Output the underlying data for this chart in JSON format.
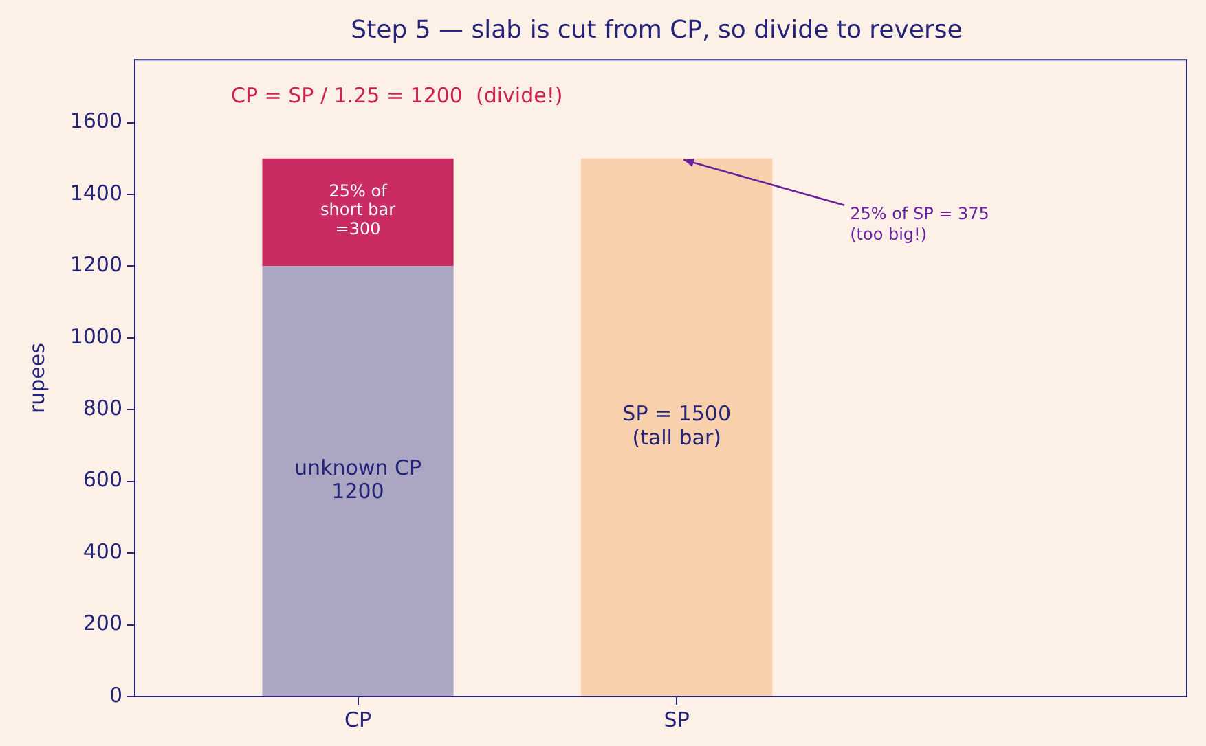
{
  "chart_data": {
    "type": "bar",
    "stacked": true,
    "title": "Step 5 — slab is cut from CP, so divide to reverse",
    "ylabel": "rupees",
    "categories": [
      "CP",
      "SP"
    ],
    "series": [
      {
        "colors": [
          "#aba7c3",
          "#f9d0ac"
        ],
        "values": [
          1200,
          1500
        ],
        "value_labels": [
          "unknown CP\n1200",
          "SP = 1500\n(tall bar)"
        ]
      },
      {
        "color": "#c92b62",
        "values": [
          300,
          null
        ],
        "value_labels": [
          "25% of\nshort bar\n=300",
          null
        ]
      }
    ],
    "ylim": [
      0,
      1775
    ],
    "yticks": [
      0,
      200,
      400,
      600,
      800,
      1000,
      1200,
      1400,
      1600
    ],
    "grid": false,
    "legend": false,
    "annotations": [
      "CP = SP / 1.25 = 1200  (divide!)",
      {
        "text": "25% of SP = 375\n(too big!)",
        "x": "SP",
        "y": 1500
      }
    ]
  }
}
